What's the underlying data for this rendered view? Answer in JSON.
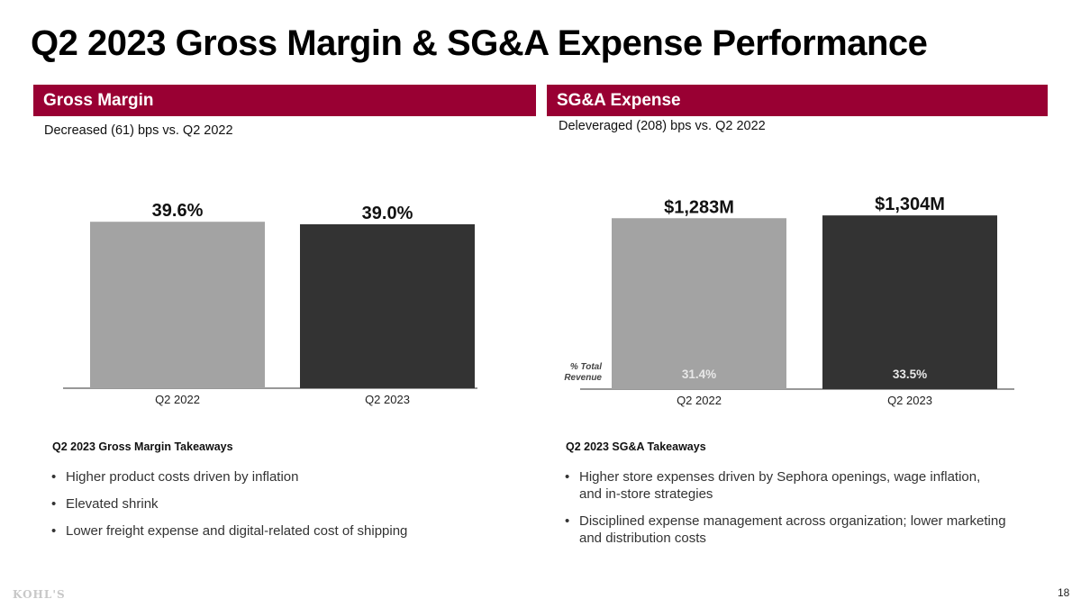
{
  "title": "Q2 2023 Gross Margin & SG&A Expense Performance",
  "colors": {
    "header_bar": "#990033",
    "bar_prior": "#a3a3a3",
    "bar_current": "#333333",
    "axis": "#777777"
  },
  "sections": {
    "gross_margin": {
      "header": "Gross Margin",
      "subtitle": "Decreased (61) bps vs. Q2 2022",
      "takeaways_title": "Q2 2023 Gross Margin Takeaways",
      "takeaways": [
        "Higher product costs driven by inflation",
        "Elevated shrink",
        "Lower freight expense and digital-related cost of shipping"
      ]
    },
    "sga": {
      "header": "SG&A Expense",
      "subtitle": "Deleveraged (208) bps vs. Q2 2022",
      "takeaways_title": "Q2 2023 SG&A Takeaways",
      "takeaways": [
        "Higher store expenses driven by Sephora openings, wage inflation, and in-store strategies",
        "Disciplined expense management across organization; lower marketing and distribution costs"
      ]
    }
  },
  "bullet_glyph": "•",
  "chart_data": [
    {
      "type": "bar",
      "title": "Gross Margin",
      "categories": [
        "Q2 2022",
        "Q2 2023"
      ],
      "values": [
        39.6,
        39.0
      ],
      "data_labels": [
        "39.6%",
        "39.0%"
      ],
      "xlabel": "",
      "ylabel": "",
      "ylim": [
        0,
        45
      ],
      "grid": false,
      "legend": "none"
    },
    {
      "type": "bar",
      "title": "SG&A Expense",
      "categories": [
        "Q2 2022",
        "Q2 2023"
      ],
      "values": [
        1283,
        1304
      ],
      "units": "$M",
      "data_labels": [
        "$1,283M",
        "$1,304M"
      ],
      "secondary_labels": [
        "31.4%",
        "33.5%"
      ],
      "secondary_label_title": [
        "% Total",
        "Revenue"
      ],
      "xlabel": "",
      "ylabel": "",
      "ylim": [
        0,
        1420
      ],
      "grid": false,
      "legend": "none"
    }
  ],
  "footer": {
    "logo": "KOHL'S",
    "page_number": "18"
  }
}
